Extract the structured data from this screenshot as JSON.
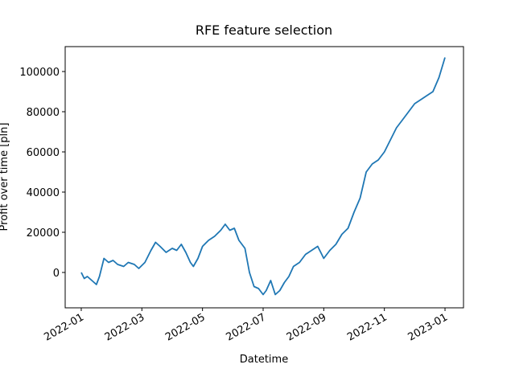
{
  "chart_data": {
    "type": "line",
    "title": "RFE feature selection",
    "x_label": "Datetime",
    "y_label": "Profit over time [pln]",
    "x": [
      0,
      0.1,
      0.2,
      0.35,
      0.5,
      0.6,
      0.75,
      0.9,
      1.05,
      1.2,
      1.4,
      1.55,
      1.75,
      1.9,
      2.1,
      2.3,
      2.45,
      2.6,
      2.8,
      3.0,
      3.15,
      3.3,
      3.45,
      3.6,
      3.7,
      3.85,
      4.0,
      4.2,
      4.4,
      4.6,
      4.75,
      4.9,
      5.05,
      5.2,
      5.4,
      5.55,
      5.7,
      5.85,
      6.0,
      6.1,
      6.25,
      6.4,
      6.55,
      6.7,
      6.85,
      7.0,
      7.2,
      7.4,
      7.6,
      7.8,
      7.9,
      8.0,
      8.2,
      8.4,
      8.6,
      8.8,
      9.0,
      9.2,
      9.4,
      9.6,
      9.8,
      10.0,
      10.2,
      10.4,
      10.6,
      10.8,
      11.0,
      11.2,
      11.4,
      11.6,
      11.8,
      12.0
    ],
    "values": [
      0,
      -3000,
      -2000,
      -4000,
      -6000,
      -2000,
      7000,
      5000,
      6000,
      4000,
      3000,
      5000,
      4000,
      2000,
      5000,
      11000,
      15000,
      13000,
      10000,
      12000,
      11000,
      14000,
      10000,
      5000,
      3000,
      7000,
      13000,
      16000,
      18000,
      21000,
      24000,
      21000,
      22000,
      16000,
      12000,
      0,
      -7000,
      -8000,
      -11000,
      -9000,
      -4000,
      -11000,
      -9000,
      -5000,
      -2000,
      3000,
      5000,
      9000,
      11000,
      13000,
      10000,
      7000,
      11000,
      14000,
      19000,
      22000,
      30000,
      37000,
      50000,
      54000,
      56000,
      60000,
      66000,
      72000,
      76000,
      80000,
      84000,
      86000,
      88000,
      90000,
      97000,
      107000
    ],
    "color": "#1f77b4",
    "xlim": [
      -0.53,
      12.61
    ],
    "xticks": [
      {
        "value": 0,
        "label": "2022-01"
      },
      {
        "value": 2,
        "label": "2022-03"
      },
      {
        "value": 4,
        "label": "2022-05"
      },
      {
        "value": 6,
        "label": "2022-07"
      },
      {
        "value": 8,
        "label": "2022-09"
      },
      {
        "value": 10,
        "label": "2022-11"
      },
      {
        "value": 12,
        "label": "2023-01"
      }
    ],
    "ylim": [
      -17600,
      112400
    ],
    "yticks": [
      0,
      20000,
      40000,
      60000,
      80000,
      100000
    ]
  }
}
